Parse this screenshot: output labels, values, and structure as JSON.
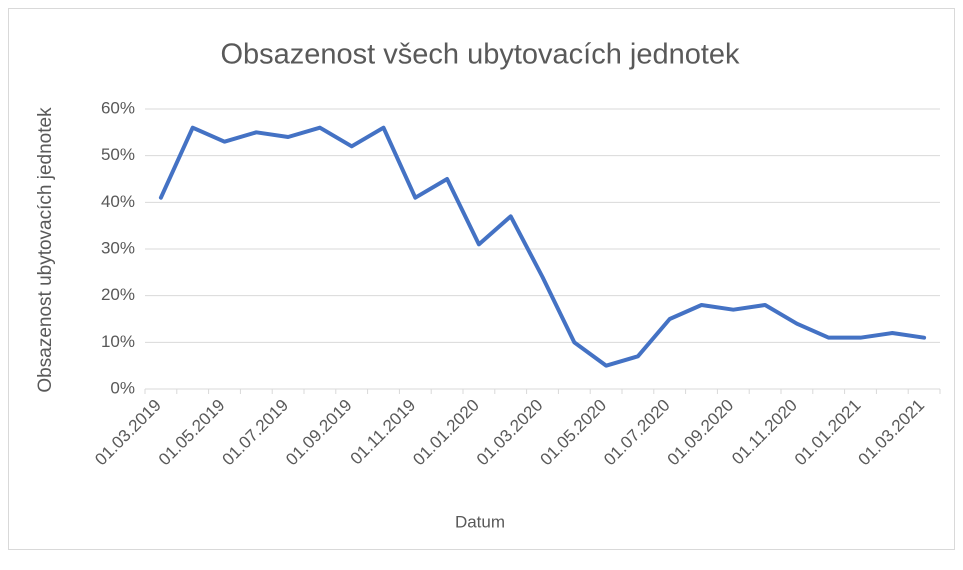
{
  "chart_data": {
    "type": "line",
    "title": "Obsazenost všech ubytovacích jednotek",
    "x_label": "Datum",
    "y_label": "Obsazenost ubytovacích jednotek",
    "categories": [
      "01.03.2019",
      null,
      "01.05.2019",
      null,
      "01.07.2019",
      null,
      "01.09.2019",
      null,
      "01.11.2019",
      null,
      "01.01.2020",
      null,
      "01.03.2020",
      null,
      "01.05.2020",
      null,
      "01.07.2020",
      null,
      "01.09.2020",
      null,
      "01.11.2020",
      null,
      "01.01.2021",
      null,
      "01.03.2021"
    ],
    "series": [
      {
        "name": "Obsazenost",
        "color": "#4472c4",
        "values": [
          41,
          56,
          53,
          55,
          54,
          56,
          52,
          56,
          41,
          45,
          31,
          37,
          24,
          10,
          5,
          7,
          15,
          18,
          17,
          18,
          14,
          11,
          11,
          12,
          11
        ]
      }
    ],
    "ylim": [
      0,
      60
    ],
    "yticks": [
      {
        "value": 0,
        "label": "0%"
      },
      {
        "value": 10,
        "label": "10%"
      },
      {
        "value": 20,
        "label": "20%"
      },
      {
        "value": 30,
        "label": "30%"
      },
      {
        "value": 40,
        "label": "40%"
      },
      {
        "value": 50,
        "label": "50%"
      },
      {
        "value": 60,
        "label": "60%"
      }
    ],
    "grid": true
  }
}
